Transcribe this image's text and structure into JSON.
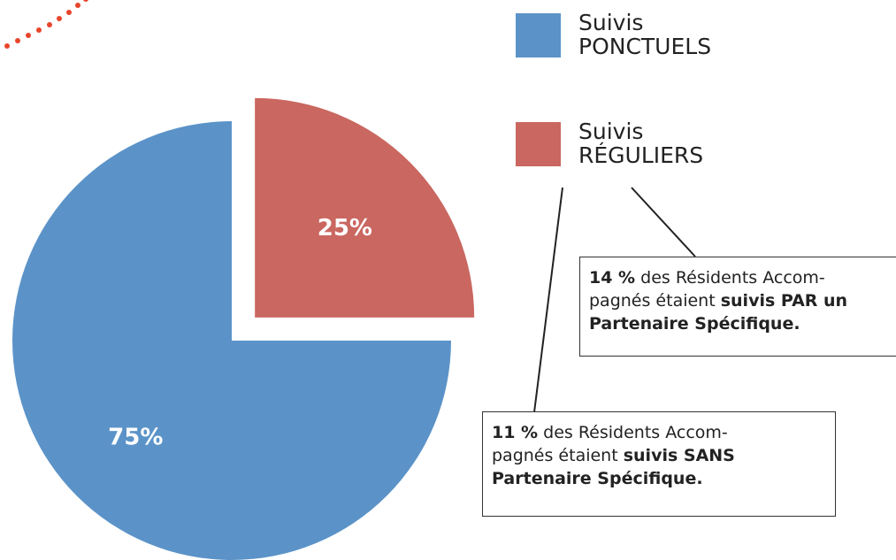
{
  "chart_data": {
    "type": "pie",
    "series": [
      {
        "name": "Suivis PONCTUELS",
        "color": "#5b93c8",
        "values": [
          75
        ],
        "value_labels": [
          "75%"
        ]
      },
      {
        "name": "Suivis RÉGULIERS",
        "color": "#c96760",
        "values": [
          25
        ],
        "value_labels": [
          "25%"
        ]
      }
    ],
    "annotations": [
      {
        "lines": [
          [
            {
              "text": "14 %",
              "bold": true
            },
            {
              "text": " des Résidents Accom-",
              "bold": false
            }
          ],
          [
            {
              "text": "pagnés étaient ",
              "bold": false
            },
            {
              "text": "suivis PAR un",
              "bold": true
            }
          ],
          [
            {
              "text": "Partenaire Spécifique.",
              "bold": true
            }
          ]
        ]
      },
      {
        "lines": [
          [
            {
              "text": "11 %",
              "bold": true
            },
            {
              "text": " des Résidents Accom-",
              "bold": false
            }
          ],
          [
            {
              "text": "pagnés étaient ",
              "bold": false
            },
            {
              "text": "suivis SANS",
              "bold": true
            }
          ],
          [
            {
              "text": "Partenaire Spécifique.",
              "bold": true
            }
          ]
        ]
      }
    ]
  }
}
